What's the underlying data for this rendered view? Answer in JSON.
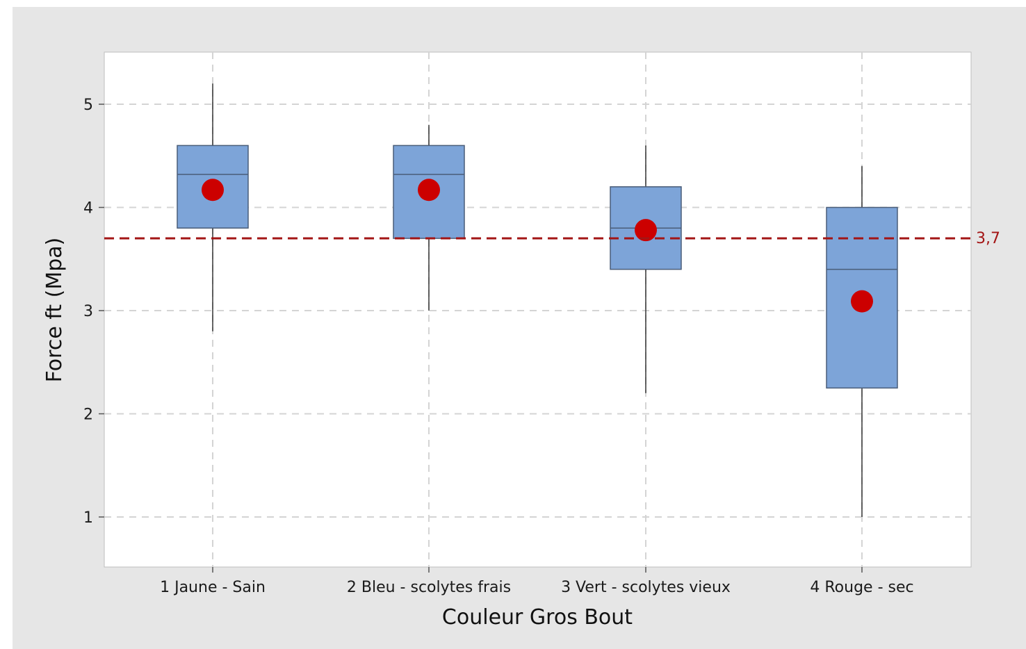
{
  "chart_data": {
    "type": "box",
    "title": "",
    "xlabel": "Couleur Gros Bout",
    "ylabel": "Force ft (Mpa)",
    "ylim": [
      0.5,
      5.5
    ],
    "yticks": [
      "1",
      "2",
      "3",
      "4",
      "5"
    ],
    "grid": true,
    "categories": [
      "1 Jaune - Sain",
      "2 Bleu - scolytes frais",
      "3 Vert - scolytes vieux",
      "4 Rouge - sec"
    ],
    "boxes": [
      {
        "min": 2.8,
        "q1": 3.8,
        "median": 4.32,
        "q3": 4.6,
        "max": 5.2,
        "mean": 4.17
      },
      {
        "min": 3.0,
        "q1": 3.7,
        "median": 4.32,
        "q3": 4.6,
        "max": 4.8,
        "mean": 4.17
      },
      {
        "min": 2.2,
        "q1": 3.4,
        "median": 3.8,
        "q3": 4.2,
        "max": 4.6,
        "mean": 3.78
      },
      {
        "min": 1.0,
        "q1": 2.25,
        "median": 3.4,
        "q3": 4.0,
        "max": 4.4,
        "mean": 3.09
      }
    ],
    "reference_line": {
      "value": 3.7,
      "label": "3,7"
    },
    "colors": {
      "box_fill": "#7da4d8",
      "box_stroke": "#4a5d78",
      "mean_marker": "#cc0000",
      "reference_line": "#a31515",
      "grid": "#d4d4d4"
    }
  }
}
